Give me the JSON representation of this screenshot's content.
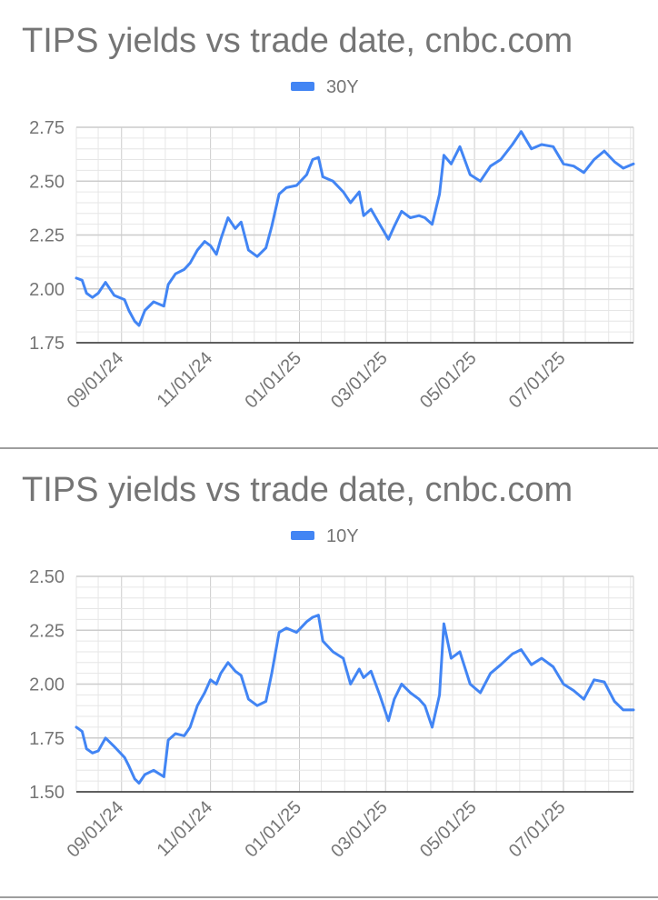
{
  "colors": {
    "line": "#4285f4",
    "grid_major": "#cccccc",
    "grid_minor": "#e6e6e6",
    "text": "#757575",
    "divider": "#9e9e9e"
  },
  "charts": [
    {
      "title": "TIPS yields vs trade date, cnbc.com",
      "legend_label": "30Y"
    },
    {
      "title": "TIPS yields vs trade date, cnbc.com",
      "legend_label": "10Y"
    }
  ],
  "chart_data": [
    {
      "type": "line",
      "title": "TIPS yields vs trade date, cnbc.com",
      "xlabel": "",
      "ylabel": "",
      "x_tick_labels": [
        "09/01/24",
        "11/01/24",
        "01/01/25",
        "03/01/25",
        "05/01/25",
        "07/01/25"
      ],
      "x_range": [
        "2024-08-01",
        "2025-08-18"
      ],
      "ylim": [
        1.75,
        2.75
      ],
      "y_ticks": [
        "1.75",
        "2.00",
        "2.25",
        "2.50",
        "2.75"
      ],
      "grid": true,
      "legend": "top",
      "series": [
        {
          "name": "30Y",
          "points": [
            [
              "2024-08-01",
              2.05
            ],
            [
              "2024-08-05",
              2.04
            ],
            [
              "2024-08-08",
              1.98
            ],
            [
              "2024-08-12",
              1.96
            ],
            [
              "2024-08-16",
              1.98
            ],
            [
              "2024-08-21",
              2.03
            ],
            [
              "2024-08-27",
              1.97
            ],
            [
              "2024-09-03",
              1.95
            ],
            [
              "2024-09-06",
              1.9
            ],
            [
              "2024-09-10",
              1.85
            ],
            [
              "2024-09-13",
              1.83
            ],
            [
              "2024-09-17",
              1.9
            ],
            [
              "2024-09-23",
              1.94
            ],
            [
              "2024-09-30",
              1.92
            ],
            [
              "2024-10-03",
              2.02
            ],
            [
              "2024-10-08",
              2.07
            ],
            [
              "2024-10-14",
              2.09
            ],
            [
              "2024-10-18",
              2.12
            ],
            [
              "2024-10-23",
              2.18
            ],
            [
              "2024-10-28",
              2.22
            ],
            [
              "2024-11-01",
              2.2
            ],
            [
              "2024-11-05",
              2.16
            ],
            [
              "2024-11-08",
              2.23
            ],
            [
              "2024-11-13",
              2.33
            ],
            [
              "2024-11-18",
              2.28
            ],
            [
              "2024-11-22",
              2.31
            ],
            [
              "2024-11-27",
              2.18
            ],
            [
              "2024-12-03",
              2.15
            ],
            [
              "2024-12-09",
              2.19
            ],
            [
              "2024-12-13",
              2.29
            ],
            [
              "2024-12-18",
              2.44
            ],
            [
              "2024-12-23",
              2.47
            ],
            [
              "2024-12-30",
              2.48
            ],
            [
              "2025-01-06",
              2.53
            ],
            [
              "2025-01-10",
              2.6
            ],
            [
              "2025-01-14",
              2.61
            ],
            [
              "2025-01-17",
              2.52
            ],
            [
              "2025-01-24",
              2.5
            ],
            [
              "2025-01-31",
              2.45
            ],
            [
              "2025-02-05",
              2.4
            ],
            [
              "2025-02-11",
              2.45
            ],
            [
              "2025-02-14",
              2.34
            ],
            [
              "2025-02-19",
              2.37
            ],
            [
              "2025-02-25",
              2.3
            ],
            [
              "2025-03-03",
              2.23
            ],
            [
              "2025-03-07",
              2.29
            ],
            [
              "2025-03-12",
              2.36
            ],
            [
              "2025-03-18",
              2.33
            ],
            [
              "2025-03-24",
              2.34
            ],
            [
              "2025-03-28",
              2.33
            ],
            [
              "2025-04-02",
              2.3
            ],
            [
              "2025-04-07",
              2.44
            ],
            [
              "2025-04-10",
              2.62
            ],
            [
              "2025-04-15",
              2.58
            ],
            [
              "2025-04-21",
              2.66
            ],
            [
              "2025-04-28",
              2.53
            ],
            [
              "2025-05-05",
              2.5
            ],
            [
              "2025-05-12",
              2.57
            ],
            [
              "2025-05-19",
              2.6
            ],
            [
              "2025-05-27",
              2.67
            ],
            [
              "2025-06-02",
              2.73
            ],
            [
              "2025-06-09",
              2.65
            ],
            [
              "2025-06-16",
              2.67
            ],
            [
              "2025-06-24",
              2.66
            ],
            [
              "2025-07-01",
              2.58
            ],
            [
              "2025-07-08",
              2.57
            ],
            [
              "2025-07-15",
              2.54
            ],
            [
              "2025-07-22",
              2.6
            ],
            [
              "2025-07-29",
              2.64
            ],
            [
              "2025-08-05",
              2.59
            ],
            [
              "2025-08-11",
              2.56
            ],
            [
              "2025-08-18",
              2.58
            ]
          ]
        }
      ]
    },
    {
      "type": "line",
      "title": "TIPS yields vs trade date, cnbc.com",
      "xlabel": "",
      "ylabel": "",
      "x_tick_labels": [
        "09/01/24",
        "11/01/24",
        "01/01/25",
        "03/01/25",
        "05/01/25",
        "07/01/25"
      ],
      "x_range": [
        "2024-08-01",
        "2025-08-18"
      ],
      "ylim": [
        1.5,
        2.5
      ],
      "y_ticks": [
        "1.50",
        "1.75",
        "2.00",
        "2.25",
        "2.50"
      ],
      "grid": true,
      "legend": "top",
      "series": [
        {
          "name": "10Y",
          "points": [
            [
              "2024-08-01",
              1.8
            ],
            [
              "2024-08-05",
              1.78
            ],
            [
              "2024-08-08",
              1.7
            ],
            [
              "2024-08-12",
              1.68
            ],
            [
              "2024-08-16",
              1.69
            ],
            [
              "2024-08-21",
              1.75
            ],
            [
              "2024-08-27",
              1.71
            ],
            [
              "2024-09-03",
              1.66
            ],
            [
              "2024-09-06",
              1.62
            ],
            [
              "2024-09-10",
              1.56
            ],
            [
              "2024-09-13",
              1.54
            ],
            [
              "2024-09-17",
              1.58
            ],
            [
              "2024-09-23",
              1.6
            ],
            [
              "2024-09-30",
              1.57
            ],
            [
              "2024-10-03",
              1.74
            ],
            [
              "2024-10-08",
              1.77
            ],
            [
              "2024-10-14",
              1.76
            ],
            [
              "2024-10-18",
              1.8
            ],
            [
              "2024-10-23",
              1.9
            ],
            [
              "2024-10-28",
              1.96
            ],
            [
              "2024-11-01",
              2.02
            ],
            [
              "2024-11-05",
              2.0
            ],
            [
              "2024-11-08",
              2.05
            ],
            [
              "2024-11-13",
              2.1
            ],
            [
              "2024-11-18",
              2.06
            ],
            [
              "2024-11-22",
              2.04
            ],
            [
              "2024-11-27",
              1.93
            ],
            [
              "2024-12-03",
              1.9
            ],
            [
              "2024-12-09",
              1.92
            ],
            [
              "2024-12-13",
              2.05
            ],
            [
              "2024-12-18",
              2.24
            ],
            [
              "2024-12-23",
              2.26
            ],
            [
              "2024-12-30",
              2.24
            ],
            [
              "2025-01-06",
              2.29
            ],
            [
              "2025-01-10",
              2.31
            ],
            [
              "2025-01-14",
              2.32
            ],
            [
              "2025-01-17",
              2.2
            ],
            [
              "2025-01-24",
              2.15
            ],
            [
              "2025-01-31",
              2.12
            ],
            [
              "2025-02-05",
              2.0
            ],
            [
              "2025-02-11",
              2.07
            ],
            [
              "2025-02-14",
              2.03
            ],
            [
              "2025-02-19",
              2.06
            ],
            [
              "2025-02-25",
              1.95
            ],
            [
              "2025-03-03",
              1.83
            ],
            [
              "2025-03-07",
              1.93
            ],
            [
              "2025-03-12",
              2.0
            ],
            [
              "2025-03-18",
              1.96
            ],
            [
              "2025-03-24",
              1.93
            ],
            [
              "2025-03-28",
              1.9
            ],
            [
              "2025-04-02",
              1.8
            ],
            [
              "2025-04-07",
              1.95
            ],
            [
              "2025-04-10",
              2.28
            ],
            [
              "2025-04-15",
              2.12
            ],
            [
              "2025-04-21",
              2.15
            ],
            [
              "2025-04-28",
              2.0
            ],
            [
              "2025-05-05",
              1.96
            ],
            [
              "2025-05-12",
              2.05
            ],
            [
              "2025-05-19",
              2.09
            ],
            [
              "2025-05-27",
              2.14
            ],
            [
              "2025-06-02",
              2.16
            ],
            [
              "2025-06-09",
              2.09
            ],
            [
              "2025-06-16",
              2.12
            ],
            [
              "2025-06-24",
              2.08
            ],
            [
              "2025-07-01",
              2.0
            ],
            [
              "2025-07-08",
              1.97
            ],
            [
              "2025-07-15",
              1.93
            ],
            [
              "2025-07-22",
              2.02
            ],
            [
              "2025-07-29",
              2.01
            ],
            [
              "2025-08-05",
              1.92
            ],
            [
              "2025-08-11",
              1.88
            ],
            [
              "2025-08-18",
              1.88
            ]
          ]
        }
      ]
    }
  ]
}
